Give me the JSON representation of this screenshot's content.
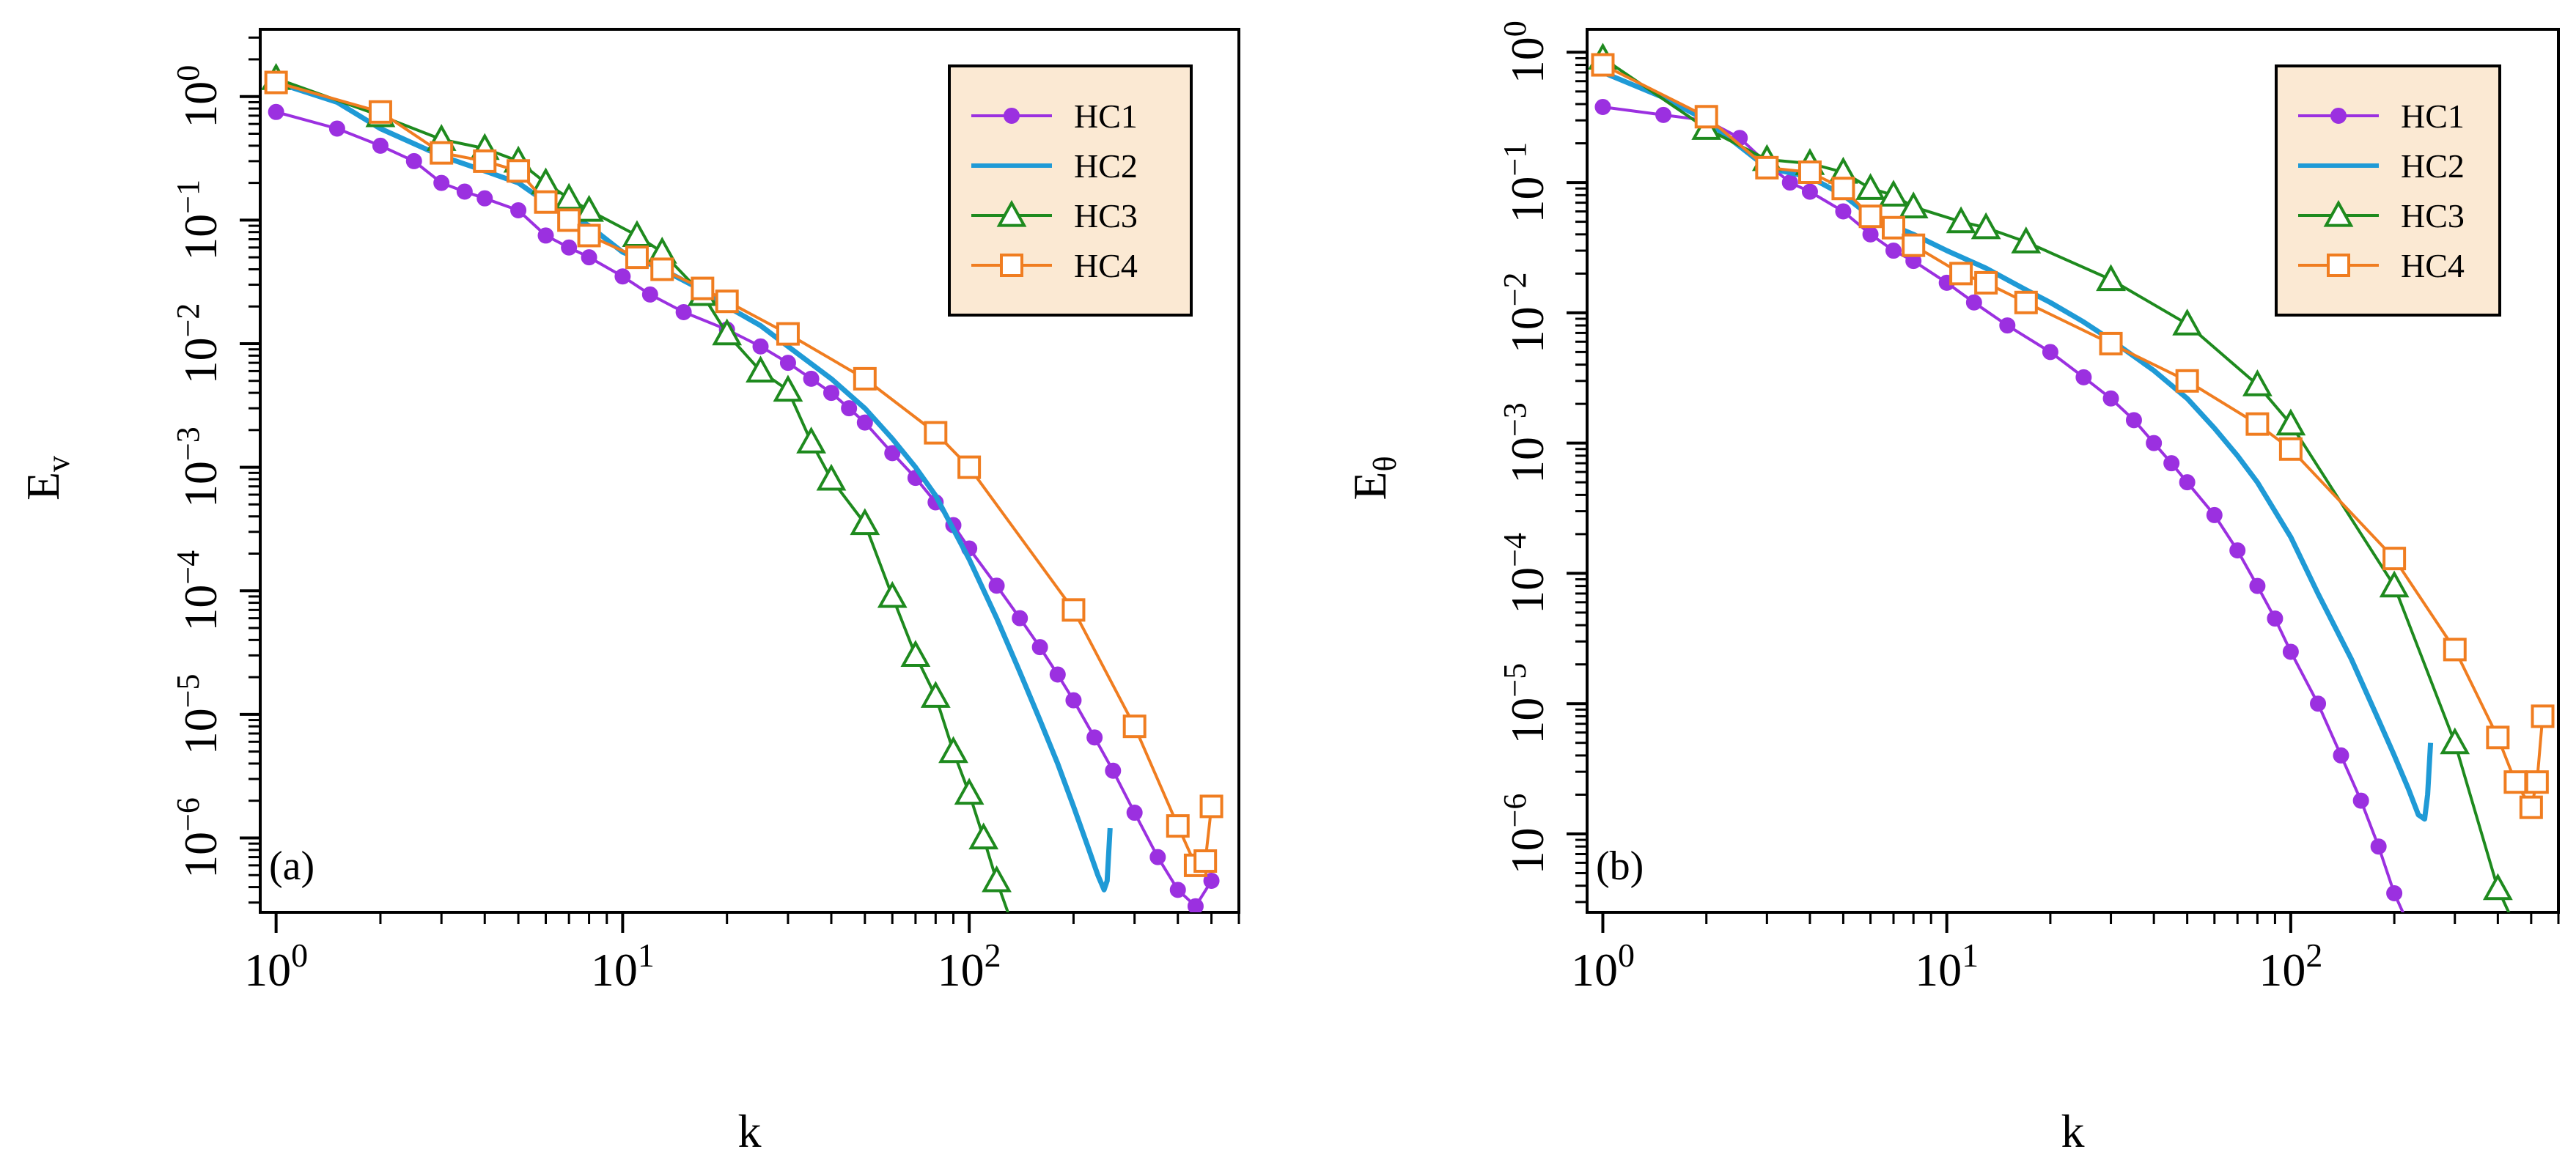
{
  "chart_data": [
    {
      "type": "line",
      "panel_label": "(a)",
      "xlabel": "k",
      "ylabel": "E",
      "ylabel_sub": "v",
      "xscale": "log",
      "yscale": "log",
      "xlim": [
        0.9,
        600
      ],
      "ylim": [
        2.5e-07,
        3.5
      ],
      "x_tick_labels": [
        {
          "value": 1,
          "base": "10",
          "exp": "0"
        },
        {
          "value": 10,
          "base": "10",
          "exp": "1"
        },
        {
          "value": 100,
          "base": "10",
          "exp": "2"
        }
      ],
      "y_tick_labels": [
        {
          "value": 1e-06,
          "base": "10",
          "exp": "−6"
        },
        {
          "value": 1e-05,
          "base": "10",
          "exp": "−5"
        },
        {
          "value": 0.0001,
          "base": "10",
          "exp": "−4"
        },
        {
          "value": 0.001,
          "base": "10",
          "exp": "−3"
        },
        {
          "value": 0.01,
          "base": "10",
          "exp": "−2"
        },
        {
          "value": 0.1,
          "base": "10",
          "exp": "−1"
        },
        {
          "value": 1,
          "base": "10",
          "exp": "0"
        }
      ],
      "legend_position": "top-right",
      "series": [
        {
          "name": "HC1",
          "color": "#9b30e0",
          "marker": "circle",
          "x": [
            1,
            1.5,
            2,
            2.5,
            3,
            3.5,
            4,
            5,
            6,
            7,
            8,
            10,
            12,
            15,
            20,
            25,
            30,
            35,
            40,
            45,
            50,
            60,
            70,
            80,
            90,
            100,
            120,
            140,
            160,
            180,
            200,
            230,
            260,
            300,
            350,
            400,
            450,
            500
          ],
          "y": [
            0.75,
            0.55,
            0.4,
            0.3,
            0.2,
            0.17,
            0.15,
            0.12,
            0.075,
            0.06,
            0.05,
            0.035,
            0.025,
            0.018,
            0.013,
            0.0095,
            0.007,
            0.0052,
            0.004,
            0.003,
            0.0023,
            0.0013,
            0.00082,
            0.00052,
            0.00034,
            0.00022,
            0.00011,
            6e-05,
            3.5e-05,
            2.1e-05,
            1.3e-05,
            6.5e-06,
            3.5e-06,
            1.6e-06,
            7e-07,
            3.8e-07,
            2.8e-07,
            4.5e-07
          ]
        },
        {
          "name": "HC2",
          "color": "#1f9ad6",
          "marker": "none",
          "x": [
            1,
            1.5,
            2,
            3,
            4,
            5,
            6,
            8,
            10,
            13,
            17,
            20,
            25,
            30,
            40,
            50,
            60,
            70,
            80,
            100,
            120,
            140,
            160,
            180,
            200,
            220,
            235,
            245,
            250,
            255
          ],
          "y": [
            1.3,
            0.9,
            0.55,
            0.33,
            0.25,
            0.2,
            0.14,
            0.09,
            0.055,
            0.04,
            0.027,
            0.02,
            0.014,
            0.0095,
            0.0052,
            0.003,
            0.0017,
            0.001,
            0.00059,
            0.00018,
            6e-05,
            2.2e-05,
            9e-06,
            4e-06,
            1.8e-06,
            8.5e-07,
            5e-07,
            3.8e-07,
            4.5e-07,
            1.2e-06
          ]
        },
        {
          "name": "HC3",
          "color": "#1e8a1e",
          "marker": "triangle",
          "x": [
            1,
            2,
            3,
            4,
            5,
            6,
            7,
            8,
            11,
            13,
            17,
            20,
            25,
            30,
            35,
            40,
            50,
            60,
            70,
            80,
            90,
            100,
            110,
            120,
            130
          ],
          "y": [
            1.4,
            0.7,
            0.45,
            0.38,
            0.3,
            0.2,
            0.15,
            0.12,
            0.075,
            0.055,
            0.025,
            0.012,
            0.006,
            0.0042,
            0.0016,
            0.0008,
            0.00035,
            9e-05,
            3e-05,
            1.4e-05,
            5e-06,
            2.3e-06,
            1e-06,
            4.5e-07,
            2.4e-07
          ]
        },
        {
          "name": "HC4",
          "color": "#f07d20",
          "marker": "square",
          "x": [
            1,
            2,
            3,
            4,
            5,
            6,
            7,
            8,
            11,
            13,
            17,
            20,
            30,
            50,
            80,
            100,
            200,
            300,
            400,
            450,
            480,
            500
          ],
          "y": [
            1.3,
            0.75,
            0.35,
            0.3,
            0.25,
            0.14,
            0.1,
            0.075,
            0.05,
            0.04,
            0.028,
            0.022,
            0.012,
            0.0052,
            0.0019,
            0.001,
            7e-05,
            8e-06,
            1.25e-06,
            6e-07,
            6.5e-07,
            1.8e-06
          ]
        }
      ]
    },
    {
      "type": "line",
      "panel_label": "(b)",
      "xlabel": "k",
      "ylabel": "E",
      "ylabel_sub": "θ",
      "xscale": "log",
      "yscale": "log",
      "xlim": [
        0.9,
        600
      ],
      "ylim": [
        2.5e-07,
        1.5
      ],
      "x_tick_labels": [
        {
          "value": 1,
          "base": "10",
          "exp": "0"
        },
        {
          "value": 10,
          "base": "10",
          "exp": "1"
        },
        {
          "value": 100,
          "base": "10",
          "exp": "2"
        }
      ],
      "y_tick_labels": [
        {
          "value": 1e-06,
          "base": "10",
          "exp": "−6"
        },
        {
          "value": 1e-05,
          "base": "10",
          "exp": "−5"
        },
        {
          "value": 0.0001,
          "base": "10",
          "exp": "−4"
        },
        {
          "value": 0.001,
          "base": "10",
          "exp": "−3"
        },
        {
          "value": 0.01,
          "base": "10",
          "exp": "−2"
        },
        {
          "value": 0.1,
          "base": "10",
          "exp": "−1"
        },
        {
          "value": 1,
          "base": "10",
          "exp": "0"
        }
      ],
      "legend_position": "top-right",
      "series": [
        {
          "name": "HC1",
          "color": "#9b30e0",
          "marker": "circle",
          "x": [
            1,
            1.5,
            2,
            2.5,
            3,
            3.5,
            4,
            5,
            6,
            7,
            8,
            10,
            12,
            15,
            20,
            25,
            30,
            35,
            40,
            45,
            50,
            60,
            70,
            80,
            90,
            100,
            120,
            140,
            160,
            180,
            200,
            220
          ],
          "y": [
            0.38,
            0.33,
            0.3,
            0.22,
            0.14,
            0.1,
            0.085,
            0.06,
            0.04,
            0.03,
            0.025,
            0.017,
            0.012,
            0.008,
            0.005,
            0.0032,
            0.0022,
            0.0015,
            0.001,
            0.0007,
            0.0005,
            0.00028,
            0.00015,
            8e-05,
            4.5e-05,
            2.5e-05,
            1e-05,
            4e-06,
            1.8e-06,
            8e-07,
            3.5e-07,
            2e-07
          ]
        },
        {
          "name": "HC2",
          "color": "#1f9ad6",
          "marker": "none",
          "x": [
            1,
            1.5,
            2,
            3,
            4,
            5,
            6,
            8,
            10,
            13,
            17,
            20,
            25,
            30,
            40,
            50,
            60,
            70,
            80,
            100,
            120,
            150,
            180,
            200,
            220,
            235,
            245,
            250,
            255
          ],
          "y": [
            0.7,
            0.45,
            0.3,
            0.13,
            0.11,
            0.08,
            0.055,
            0.04,
            0.03,
            0.022,
            0.015,
            0.012,
            0.0085,
            0.0062,
            0.0036,
            0.0022,
            0.0013,
            0.0008,
            0.0005,
            0.00019,
            7e-05,
            2.2e-05,
            7.5e-06,
            4e-06,
            2.2e-06,
            1.4e-06,
            1.3e-06,
            2e-06,
            5e-06
          ]
        },
        {
          "name": "HC3",
          "color": "#1e8a1e",
          "marker": "triangle",
          "x": [
            1,
            2,
            3,
            4,
            5,
            6,
            7,
            8,
            11,
            13,
            17,
            30,
            50,
            80,
            100,
            200,
            300,
            400,
            440
          ],
          "y": [
            0.9,
            0.26,
            0.15,
            0.14,
            0.12,
            0.09,
            0.08,
            0.065,
            0.05,
            0.045,
            0.035,
            0.018,
            0.0082,
            0.0028,
            0.0014,
            8e-05,
            5e-06,
            3.8e-07,
            2.2e-07
          ]
        },
        {
          "name": "HC4",
          "color": "#f07d20",
          "marker": "square",
          "x": [
            1,
            2,
            3,
            4,
            5,
            6,
            7,
            8,
            11,
            13,
            17,
            30,
            50,
            80,
            100,
            200,
            300,
            400,
            450,
            500,
            520,
            540
          ],
          "y": [
            0.8,
            0.32,
            0.13,
            0.12,
            0.09,
            0.055,
            0.045,
            0.033,
            0.02,
            0.017,
            0.012,
            0.0058,
            0.003,
            0.0014,
            0.0009,
            0.00013,
            2.6e-05,
            5.5e-06,
            2.5e-06,
            1.6e-06,
            2.5e-06,
            8e-06
          ]
        }
      ]
    }
  ]
}
